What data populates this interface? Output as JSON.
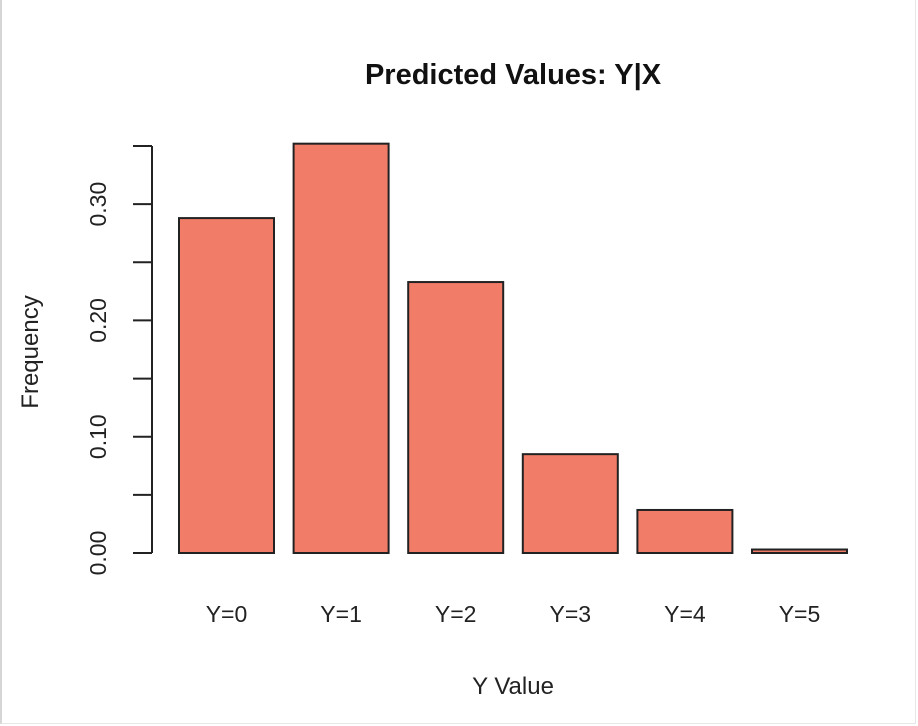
{
  "chart_data": {
    "type": "bar",
    "title": "Predicted Values: Y|X",
    "xlabel": "Y Value",
    "ylabel": "Frequency",
    "categories": [
      "Y=0",
      "Y=1",
      "Y=2",
      "Y=3",
      "Y=4",
      "Y=5"
    ],
    "values": [
      0.288,
      0.352,
      0.233,
      0.085,
      0.037,
      0.003
    ],
    "ylim": [
      0,
      0.35
    ],
    "yticks": [
      0.0,
      0.05,
      0.1,
      0.15,
      0.2,
      0.25,
      0.3,
      0.35
    ],
    "ytick_labels": [
      "0.00",
      "",
      "0.10",
      "",
      "0.20",
      "",
      "0.30",
      ""
    ],
    "grid": false,
    "colors": {
      "bar_fill": "#F17C67",
      "bar_stroke": "#222222"
    }
  }
}
